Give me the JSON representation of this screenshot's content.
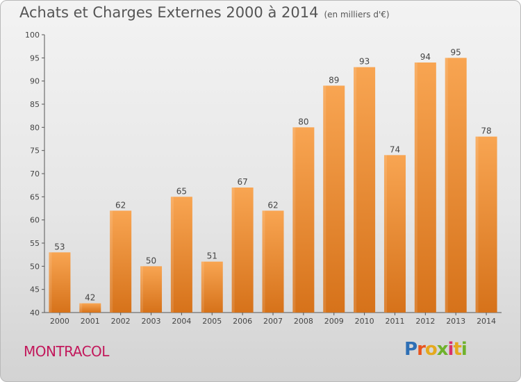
{
  "header": {
    "title": "Achats et Charges Externes 2000 à 2014",
    "subtitle": "(en milliers d'€)"
  },
  "footer": {
    "commune": "MONTRACOL",
    "logo_text": "Proxiti"
  },
  "colors": {
    "bar_top": "#f8a552",
    "bar_bottom": "#d8741c",
    "axis": "#555555",
    "commune_text": "#c2185b"
  },
  "chart_data": {
    "type": "bar",
    "title": "Achats et Charges Externes 2000 à 2014",
    "subtitle": "(en milliers d'€)",
    "categories": [
      "2000",
      "2001",
      "2002",
      "2003",
      "2004",
      "2005",
      "2006",
      "2007",
      "2008",
      "2009",
      "2010",
      "2011",
      "2012",
      "2013",
      "2014"
    ],
    "values": [
      53,
      42,
      62,
      50,
      65,
      51,
      67,
      62,
      80,
      89,
      93,
      74,
      94,
      95,
      78
    ],
    "ylim": [
      40,
      100
    ],
    "yticks": [
      40,
      45,
      50,
      55,
      60,
      65,
      70,
      75,
      80,
      85,
      90,
      95,
      100
    ],
    "grid": false,
    "legend": "none"
  }
}
